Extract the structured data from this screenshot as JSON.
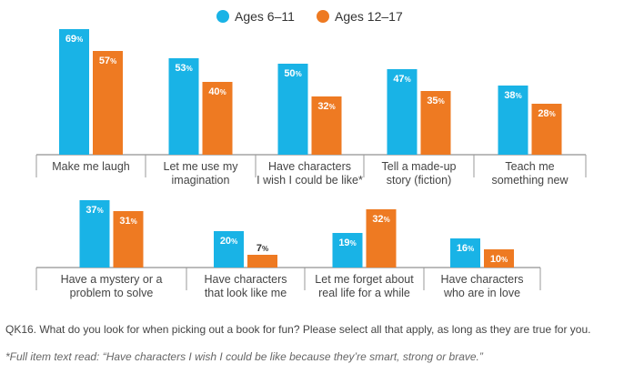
{
  "chart_data": {
    "type": "bar",
    "legend": {
      "position": "top-center",
      "series": [
        {
          "name": "Ages 6–11",
          "color": "#19B3E6"
        },
        {
          "name": "Ages 12–17",
          "color": "#EE7A22"
        }
      ]
    },
    "value_suffix": "%",
    "groups": [
      {
        "label_lines": [
          "Make me laugh"
        ],
        "values": [
          69,
          57
        ]
      },
      {
        "label_lines": [
          "Let me use my",
          "imagination"
        ],
        "values": [
          53,
          40
        ]
      },
      {
        "label_lines": [
          "Have characters",
          "I wish I could be like*"
        ],
        "values": [
          50,
          32
        ]
      },
      {
        "label_lines": [
          "Tell a made-up",
          "story (fiction)"
        ],
        "values": [
          47,
          35
        ]
      },
      {
        "label_lines": [
          "Teach me",
          "something new"
        ],
        "values": [
          38,
          28
        ]
      },
      {
        "label_lines": [
          "Have a mystery or a",
          "problem to solve"
        ],
        "values": [
          37,
          31
        ]
      },
      {
        "label_lines": [
          "Have characters",
          "that look like me"
        ],
        "values": [
          20,
          7
        ]
      },
      {
        "label_lines": [
          "Let me forget about",
          "real life for a while"
        ],
        "values": [
          19,
          32
        ]
      },
      {
        "label_lines": [
          "Have characters",
          "who are in love"
        ],
        "values": [
          16,
          10
        ]
      }
    ]
  },
  "notes": {
    "question": "QK16. What do you look for when picking out a book for fun? Please select all that apply, as long as they are true for you.",
    "full_item": "*Full item text read: “Have characters I wish I could be like because they’re smart, strong or brave.”"
  }
}
